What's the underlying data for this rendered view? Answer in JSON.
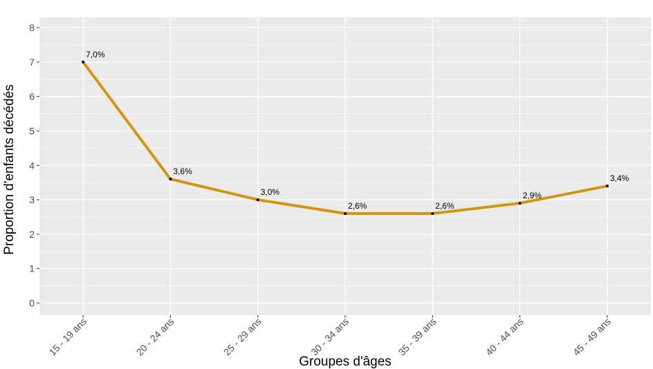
{
  "chart_data": {
    "type": "line",
    "title": "",
    "xlabel": "Groupes d'âges",
    "ylabel": "Proportion d'enfants décédés",
    "categories": [
      "15 - 19 ans",
      "20 - 24 ans",
      "25 - 29 ans",
      "30 - 34 ans",
      "35 - 39 ans",
      "40 - 44 ans",
      "45 - 49 ans"
    ],
    "series": [
      {
        "name": "Proportion d'enfants décédés",
        "values": [
          7.0,
          3.6,
          3.0,
          2.6,
          2.6,
          2.9,
          3.4
        ],
        "labels": [
          "7,0%",
          "3,6%",
          "3,0%",
          "2,6%",
          "2,6%",
          "2,9%",
          "3,4%"
        ],
        "color": "#d4950e"
      }
    ],
    "yticks": [
      "0",
      "1",
      "2",
      "3",
      "4",
      "5",
      "6",
      "7",
      "8"
    ],
    "ylim": [
      -0.35,
      8.3
    ],
    "grid": true,
    "legend": "none",
    "panel_color": "#ebebeb",
    "grid_color": "#ffffff"
  }
}
